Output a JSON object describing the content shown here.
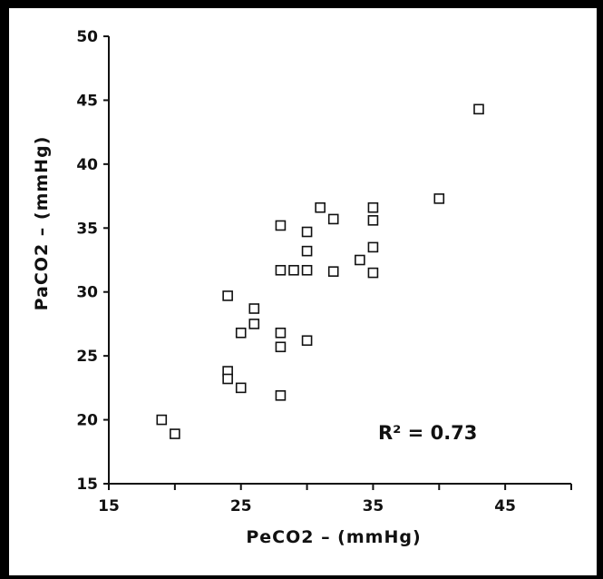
{
  "chart_data": {
    "type": "scatter",
    "title": "",
    "xlabel": "PeCO2  –  (mmHg)",
    "ylabel": "PaCO2  –  (mmHg)",
    "xlim": [
      15,
      50
    ],
    "ylim": [
      15,
      50
    ],
    "x_ticks": [
      15,
      25,
      35,
      45
    ],
    "y_ticks": [
      15,
      20,
      25,
      30,
      35,
      40,
      45,
      50
    ],
    "grid": false,
    "annotation": "R² = 0.73",
    "marker": "open-square",
    "points": [
      [
        19.0,
        20.0
      ],
      [
        20.0,
        18.9
      ],
      [
        24.0,
        29.7
      ],
      [
        24.0,
        23.8
      ],
      [
        24.0,
        23.2
      ],
      [
        25.0,
        22.5
      ],
      [
        25.0,
        26.8
      ],
      [
        26.0,
        28.7
      ],
      [
        26.0,
        27.5
      ],
      [
        28.0,
        35.2
      ],
      [
        28.0,
        31.7
      ],
      [
        28.0,
        26.8
      ],
      [
        28.0,
        25.7
      ],
      [
        28.0,
        21.9
      ],
      [
        29.0,
        31.7
      ],
      [
        30.0,
        34.7
      ],
      [
        30.0,
        33.2
      ],
      [
        30.0,
        31.7
      ],
      [
        30.0,
        26.2
      ],
      [
        31.0,
        36.6
      ],
      [
        32.0,
        35.7
      ],
      [
        32.0,
        31.6
      ],
      [
        34.0,
        32.5
      ],
      [
        35.0,
        36.6
      ],
      [
        35.0,
        35.6
      ],
      [
        35.0,
        33.5
      ],
      [
        35.0,
        31.5
      ],
      [
        40.0,
        37.3
      ],
      [
        43.0,
        44.3
      ]
    ]
  }
}
